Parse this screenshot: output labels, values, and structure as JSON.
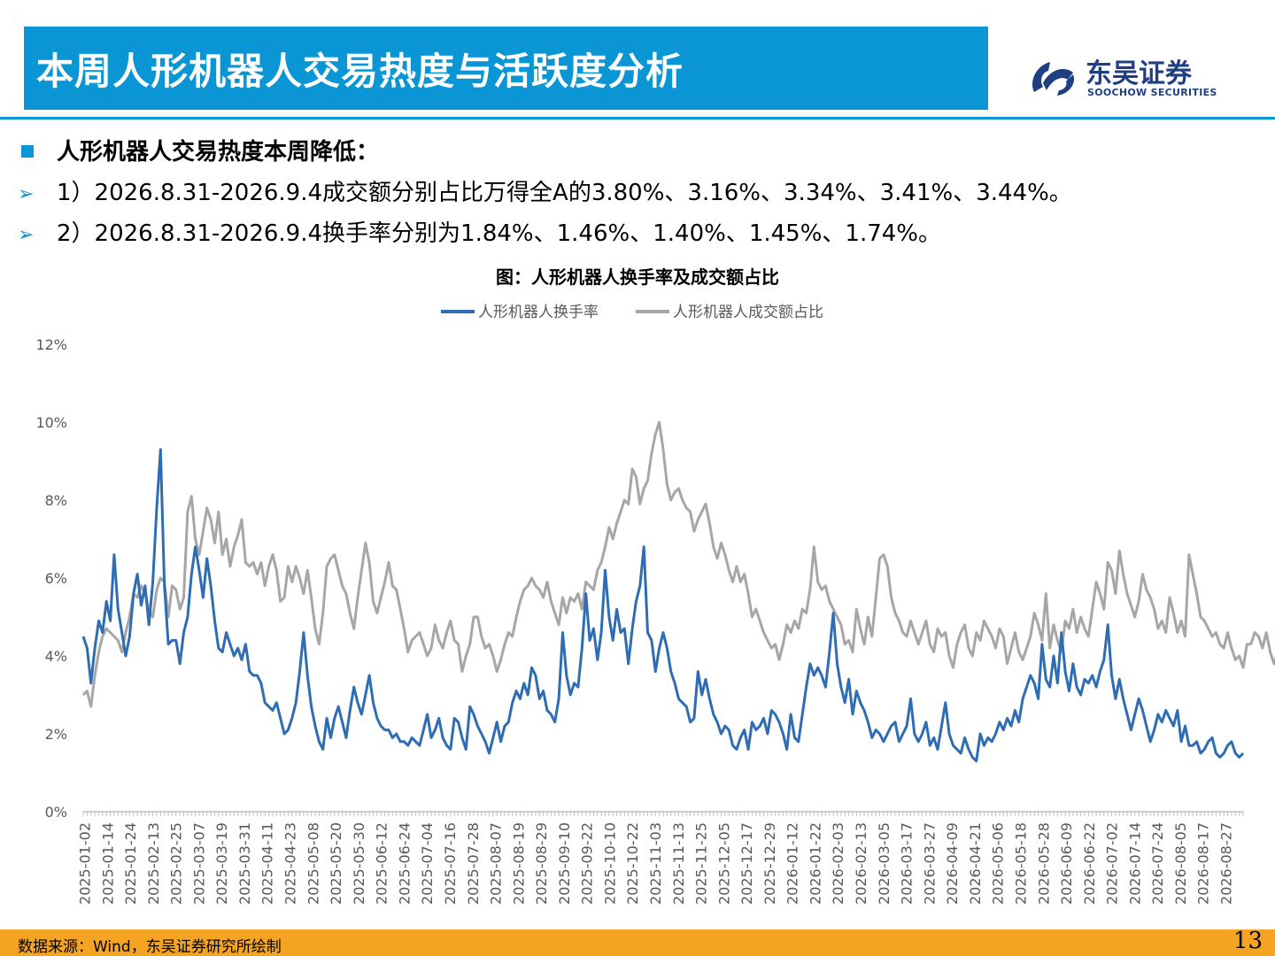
{
  "header": {
    "title": "本周人形机器人交易热度与活跃度分析",
    "logo_cn": "东吴证券",
    "logo_en": "SOOCHOW SECURITIES",
    "logo_icon": "soochow-logo-icon"
  },
  "bullets": {
    "heading": "人形机器人交易热度本周降低：",
    "item1": "1）2026.8.31-2026.9.4成交额分别占比万得全A的3.80%、3.16%、3.34%、3.41%、3.44%。",
    "item2": "2）2026.8.31-2026.9.4换手率分别为1.84%、1.46%、1.40%、1.45%、1.74%。"
  },
  "footer": {
    "source": "数据来源：Wind，东吴证券研究所绘制",
    "page": "13"
  },
  "colors": {
    "accent": "#0a96d4",
    "footer": "#f4a422",
    "series_turnover": "#2e6db4",
    "series_share": "#a6a6a6"
  },
  "chart_data": {
    "type": "line",
    "title": "图：人形机器人换手率及成交额占比",
    "ylim": [
      0,
      12
    ],
    "y_ticks": [
      "0%",
      "2%",
      "4%",
      "6%",
      "8%",
      "10%",
      "12%"
    ],
    "grid": false,
    "legend_position": "top",
    "x_labels": [
      "2025-01-02",
      "2025-01-14",
      "2025-01-24",
      "2025-02-13",
      "2025-02-25",
      "2025-03-07",
      "2025-03-19",
      "2025-03-31",
      "2025-04-11",
      "2025-04-23",
      "2025-05-08",
      "2025-05-20",
      "2025-05-30",
      "2025-06-12",
      "2025-06-24",
      "2025-07-04",
      "2025-07-16",
      "2025-07-28",
      "2025-08-07",
      "2025-08-19",
      "2025-08-29",
      "2025-09-10",
      "2025-09-22",
      "2025-10-10",
      "2025-10-22",
      "2025-11-03",
      "2025-11-13",
      "2025-11-25",
      "2025-12-05",
      "2025-12-17",
      "2025-12-29",
      "2026-01-12",
      "2026-01-22",
      "2026-02-03",
      "2026-02-13",
      "2026-03-05",
      "2026-03-17",
      "2026-03-27",
      "2026-04-09",
      "2026-04-21",
      "2026-05-06",
      "2026-05-18",
      "2026-05-28",
      "2026-06-09",
      "2026-06-22",
      "2026-07-02",
      "2026-07-14",
      "2026-07-24",
      "2026-08-05",
      "2026-08-17",
      "2026-08-27"
    ],
    "series": [
      {
        "name": "人形机器人换手率",
        "values": [
          4.5,
          4.2,
          3.3,
          4.2,
          4.9,
          4.6,
          5.4,
          4.9,
          6.6,
          5.2,
          4.6,
          4.0,
          4.5,
          5.6,
          6.1,
          5.3,
          5.8,
          4.8,
          5.9,
          7.8,
          9.3,
          5.8,
          4.3,
          4.4,
          4.4,
          3.8,
          4.6,
          5.0,
          6.1,
          6.8,
          6.2,
          5.5,
          6.5,
          5.8,
          4.9,
          4.2,
          4.1,
          4.6,
          4.3,
          4.0,
          4.2,
          3.9,
          4.3,
          3.6,
          3.5,
          3.5,
          3.3,
          2.8,
          2.7,
          2.6,
          2.8,
          2.4,
          2.0,
          2.1,
          2.4,
          2.8,
          3.6,
          4.6,
          3.5,
          2.7,
          2.2,
          1.8,
          1.6,
          2.4,
          1.9,
          2.4,
          2.7,
          2.3,
          1.9,
          2.6,
          3.2,
          2.8,
          2.5,
          3.0,
          3.5,
          2.8,
          2.4,
          2.2,
          2.1,
          2.1,
          1.9,
          2.0,
          1.8,
          1.8,
          1.7,
          1.9,
          1.8,
          1.7,
          2.1,
          2.5,
          1.9,
          2.1,
          2.4,
          1.9,
          1.7,
          1.6,
          2.4,
          2.3,
          1.9,
          1.6,
          2.7,
          2.5,
          2.2,
          2.0,
          1.8,
          1.5,
          1.9,
          2.3,
          1.8,
          2.2,
          2.3,
          2.8,
          3.1,
          2.9,
          3.3,
          3.0,
          3.7,
          3.5,
          2.9,
          3.1,
          2.6,
          2.5,
          2.3,
          2.9,
          4.6,
          3.5,
          3.0,
          3.3,
          3.2,
          4.2,
          5.6,
          4.4,
          4.7,
          3.9,
          4.6,
          6.2,
          5.0,
          4.4,
          5.2,
          4.6,
          4.7,
          3.8,
          4.7,
          5.4,
          5.8,
          6.8,
          4.6,
          4.4,
          3.6,
          4.2,
          4.6,
          4.2,
          3.6,
          3.3,
          2.9,
          2.8,
          2.7,
          2.3,
          2.4,
          3.6,
          3.0,
          3.4,
          2.9,
          2.5,
          2.3,
          2.0,
          2.2,
          2.1,
          1.7,
          1.6,
          1.9,
          2.1,
          1.6,
          2.3,
          2.1,
          2.2,
          2.4,
          2.0,
          2.6,
          2.5,
          2.3,
          2.0,
          1.6,
          2.5,
          1.9,
          1.8,
          2.5,
          3.2,
          3.8,
          3.5,
          3.7,
          3.5,
          3.2,
          4.1,
          5.1,
          3.8,
          3.2,
          2.8,
          3.4,
          2.5,
          3.1,
          2.8,
          2.6,
          2.3,
          1.9,
          2.1,
          2.0,
          1.8,
          2.0,
          2.2,
          2.3,
          1.8,
          2.0,
          2.2,
          2.9,
          2.0,
          1.8,
          2.0,
          2.3,
          1.7,
          1.9,
          1.6,
          2.2,
          2.8,
          2.0,
          1.7,
          1.6,
          1.5,
          1.9,
          1.6,
          1.4,
          1.3,
          2.0,
          1.7,
          1.9,
          1.8,
          2.0,
          2.3,
          2.1,
          2.4,
          2.2,
          2.6,
          2.3,
          2.9,
          3.2,
          3.5,
          3.3,
          2.9,
          4.3,
          3.4,
          3.2,
          4.0,
          3.3,
          4.6,
          3.6,
          3.1,
          3.8,
          3.2,
          3.0,
          3.4,
          3.3,
          3.5,
          3.2,
          3.6,
          3.9,
          4.8,
          3.5,
          2.9,
          3.4,
          2.9,
          2.5,
          2.1,
          2.5,
          2.9,
          2.6,
          2.2,
          1.8,
          2.1,
          2.5,
          2.3,
          2.6,
          2.4,
          2.2,
          2.6,
          1.8,
          2.2,
          1.7,
          1.7,
          1.8,
          1.5,
          1.6,
          1.8,
          1.9,
          1.5,
          1.4,
          1.5,
          1.7,
          1.8,
          1.5,
          1.4,
          1.5
        ]
      },
      {
        "name": "人形机器人成交额占比",
        "values": [
          3.0,
          3.1,
          2.7,
          3.5,
          4.1,
          4.5,
          4.7,
          4.6,
          4.5,
          4.4,
          4.1,
          4.6,
          5.0,
          5.6,
          5.5,
          5.8,
          5.6,
          5.2,
          5.0,
          5.7,
          6.0,
          5.9,
          5.0,
          5.8,
          5.7,
          5.2,
          5.5,
          7.7,
          8.1,
          7.0,
          6.6,
          7.2,
          7.8,
          7.5,
          6.9,
          7.7,
          6.6,
          7.0,
          6.3,
          6.8,
          7.1,
          7.5,
          6.4,
          6.3,
          6.4,
          6.1,
          6.4,
          5.8,
          6.3,
          6.6,
          6.2,
          5.4,
          5.5,
          6.3,
          5.9,
          6.3,
          6.0,
          5.6,
          6.2,
          5.5,
          4.7,
          4.3,
          5.1,
          6.3,
          6.5,
          6.6,
          6.2,
          5.8,
          5.6,
          5.1,
          4.7,
          5.5,
          6.2,
          6.9,
          6.4,
          5.4,
          5.1,
          5.5,
          5.9,
          6.4,
          5.8,
          5.7,
          5.2,
          4.7,
          4.1,
          4.4,
          4.5,
          4.6,
          4.3,
          4.0,
          4.2,
          4.8,
          4.4,
          4.2,
          4.6,
          4.9,
          4.4,
          4.3,
          3.6,
          4.0,
          4.3,
          5.0,
          5.0,
          4.5,
          4.2,
          4.3,
          4.0,
          3.6,
          3.9,
          4.3,
          4.6,
          4.5,
          5.0,
          5.4,
          5.7,
          5.8,
          6.0,
          5.8,
          5.7,
          5.5,
          5.9,
          5.4,
          5.1,
          4.8,
          5.5,
          5.1,
          5.5,
          5.4,
          5.6,
          5.2,
          5.9,
          5.8,
          5.7,
          6.2,
          6.4,
          6.8,
          7.3,
          7.0,
          7.4,
          7.7,
          8.0,
          7.9,
          8.8,
          8.6,
          7.9,
          8.3,
          8.5,
          9.2,
          9.7,
          10.0,
          9.3,
          8.4,
          8.0,
          8.2,
          8.3,
          8.0,
          7.8,
          7.7,
          7.2,
          7.5,
          7.7,
          7.9,
          7.4,
          6.8,
          6.5,
          6.9,
          6.6,
          6.2,
          5.9,
          6.3,
          5.9,
          6.1,
          5.6,
          5.0,
          5.2,
          4.9,
          4.6,
          4.4,
          4.2,
          4.3,
          3.9,
          4.3,
          4.8,
          4.6,
          4.9,
          4.7,
          5.2,
          5.1,
          5.7,
          6.8,
          5.9,
          5.7,
          5.8,
          5.4,
          5.2,
          5.0,
          4.8,
          4.3,
          4.4,
          4.1,
          5.2,
          4.7,
          4.3,
          5.0,
          4.5,
          5.5,
          6.5,
          6.6,
          6.3,
          5.5,
          5.1,
          4.9,
          4.6,
          4.5,
          4.9,
          4.6,
          4.3,
          4.6,
          4.9,
          4.3,
          4.1,
          4.7,
          4.5,
          4.6,
          4.0,
          3.7,
          4.3,
          4.6,
          4.8,
          4.2,
          4.0,
          4.6,
          4.4,
          4.9,
          4.7,
          4.5,
          4.2,
          4.7,
          4.5,
          3.8,
          4.2,
          4.6,
          4.1,
          3.9,
          4.2,
          4.5,
          5.1,
          4.8,
          4.4,
          5.6,
          4.2,
          4.8,
          4.4,
          4.1,
          4.9,
          4.7,
          5.2,
          4.6,
          5.0,
          4.7,
          4.5,
          5.2,
          5.9,
          5.6,
          5.2,
          6.4,
          6.2,
          5.6,
          6.7,
          6.1,
          5.6,
          5.3,
          5.0,
          5.4,
          6.1,
          5.7,
          5.5,
          5.2,
          4.7,
          4.9,
          4.6,
          5.5,
          5.1,
          4.6,
          4.9,
          4.5,
          6.6,
          6.1,
          5.6,
          5.0,
          4.9,
          4.7,
          4.5,
          4.6,
          4.3,
          4.2,
          4.6,
          4.2,
          3.9,
          4.0,
          3.7,
          4.3,
          4.3,
          4.6,
          4.5,
          4.2,
          4.6,
          4.1,
          3.8,
          4.1,
          3.9,
          4.4,
          4.3,
          3.8,
          3.9,
          4.1,
          3.7,
          3.9,
          3.8,
          3.9,
          3.6,
          3.8,
          3.9,
          3.4,
          3.4
        ]
      }
    ]
  }
}
